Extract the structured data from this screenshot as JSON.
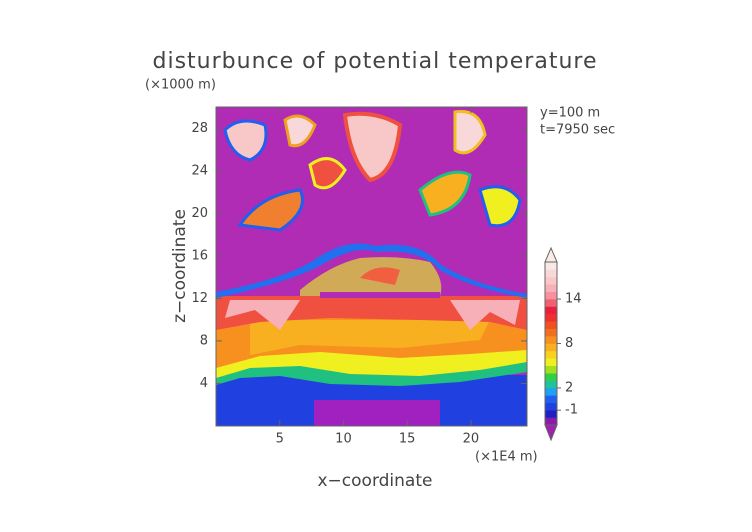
{
  "chart_data": {
    "type": "contour",
    "title": "disturbunce of potential temperature",
    "y_unit_label": "(×1000 m)",
    "x_unit_label": "(×1E4 m)",
    "annotations": [
      "y=100 m",
      "t=7950 sec"
    ],
    "xlabel": "x−coordinate",
    "ylabel": "z−coordinate",
    "xlim": [
      0,
      24.4
    ],
    "xticks": [
      5,
      10,
      15,
      20
    ],
    "ylim": [
      0,
      30
    ],
    "yticks": [
      4,
      8,
      12,
      16,
      20,
      24,
      28
    ],
    "colorbar": {
      "lim": [
        -3,
        19
      ],
      "ticks": [
        -1,
        2,
        8,
        14
      ],
      "colors": [
        "#8c1aa8",
        "#2020c0",
        "#2040e0",
        "#2060f0",
        "#20a0f0",
        "#20c0a0",
        "#30d040",
        "#a0e020",
        "#f0f020",
        "#f8d020",
        "#f8b020",
        "#f89020",
        "#f07020",
        "#f05020",
        "#f03030",
        "#e82040",
        "#f06070",
        "#f890a0",
        "#f8b0b8",
        "#f8c8c8",
        "#f8d8d8",
        "#f8e8e8"
      ],
      "under_color": "#a020b0",
      "over_color": "#f8ece4"
    }
  }
}
